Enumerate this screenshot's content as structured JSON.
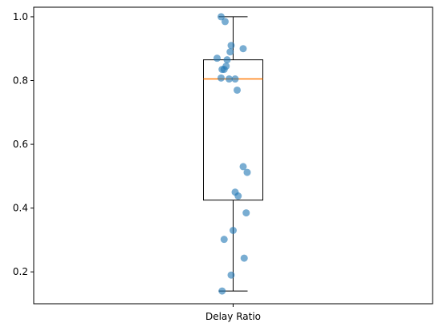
{
  "chart_data": {
    "type": "box",
    "title": "",
    "xlabel": "",
    "ylabel": "",
    "categories": [
      "Delay Ratio"
    ],
    "ylim": [
      0.1,
      1.03
    ],
    "yticks": [
      0.2,
      0.4,
      0.6,
      0.8,
      1.0
    ],
    "ytick_labels": [
      "0.2",
      "0.4",
      "0.6",
      "0.8",
      "1.0"
    ],
    "grid": false,
    "box": {
      "min": 0.14,
      "q1": 0.425,
      "median": 0.805,
      "q3": 0.865,
      "max": 1.0
    },
    "points": [
      {
        "jitter": -0.06,
        "y": 1.0
      },
      {
        "jitter": -0.04,
        "y": 0.985
      },
      {
        "jitter": -0.01,
        "y": 0.91
      },
      {
        "jitter": 0.05,
        "y": 0.9
      },
      {
        "jitter": -0.015,
        "y": 0.89
      },
      {
        "jitter": -0.08,
        "y": 0.87
      },
      {
        "jitter": -0.03,
        "y": 0.865
      },
      {
        "jitter": -0.035,
        "y": 0.845
      },
      {
        "jitter": -0.045,
        "y": 0.835
      },
      {
        "jitter": -0.055,
        "y": 0.835
      },
      {
        "jitter": -0.06,
        "y": 0.808
      },
      {
        "jitter": -0.02,
        "y": 0.805
      },
      {
        "jitter": 0.01,
        "y": 0.805
      },
      {
        "jitter": 0.02,
        "y": 0.77
      },
      {
        "jitter": 0.05,
        "y": 0.53
      },
      {
        "jitter": 0.07,
        "y": 0.512
      },
      {
        "jitter": 0.01,
        "y": 0.45
      },
      {
        "jitter": 0.025,
        "y": 0.438
      },
      {
        "jitter": 0.065,
        "y": 0.385
      },
      {
        "jitter": 0.0,
        "y": 0.33
      },
      {
        "jitter": -0.045,
        "y": 0.302
      },
      {
        "jitter": 0.055,
        "y": 0.243
      },
      {
        "jitter": -0.01,
        "y": 0.19
      },
      {
        "jitter": -0.055,
        "y": 0.14
      }
    ],
    "colors": {
      "points": "#1f77b4",
      "median": "#ff7f0e",
      "box": "#000000"
    }
  }
}
